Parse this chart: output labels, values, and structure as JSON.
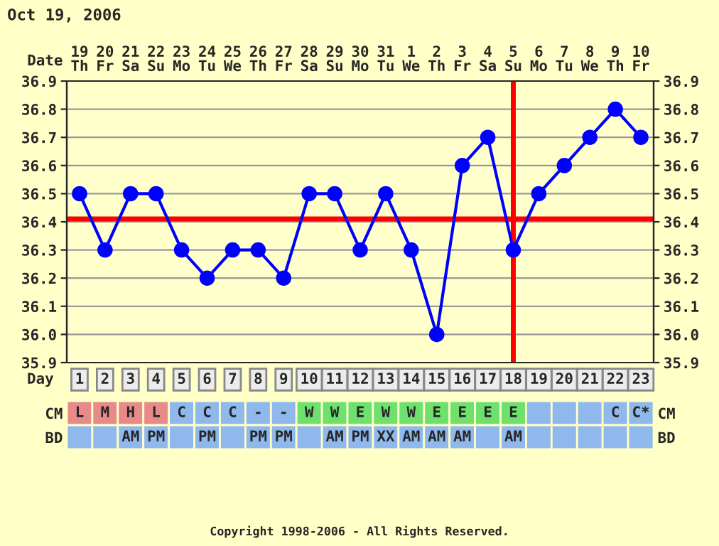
{
  "chart_data": [
    {
      "type": "heatmap",
      "title": "Oct 19, 2006",
      "categories": [
        null,
        null,
        null,
        null,
        null,
        null,
        null,
        null,
        null,
        null,
        null,
        null,
        null,
        null,
        null,
        null,
        null,
        null,
        null,
        null,
        null,
        null,
        null
      ],
      "y_categories": [
        "Date"
      ],
      "cells": [
        [
          null,
          null,
          null,
          null,
          null,
          null,
          null,
          null,
          null,
          null,
          null,
          null,
          null,
          null,
          null,
          null,
          null,
          null,
          null,
          null,
          null,
          null,
          null
        ]
      ],
      "cell_labels": [
        [
          "19\nTh",
          "20\nFr",
          "21\nSa",
          "22\nSu",
          "23\nMo",
          "24\nTu",
          "25\nWe",
          "26\nTh",
          "27\nFr",
          "28\nSa",
          "29\nSu",
          "30\nMo",
          "31\nTu",
          "1\nWe",
          "2\nTh",
          "3\nFr",
          "4\nSa",
          "5\nSu",
          "6\nMo",
          "7\nTu",
          "8\nWe",
          "9\nTh",
          "10\nFr"
        ]
      ]
    },
    {
      "type": "line",
      "xlabel": "Day",
      "categories": [
        "1",
        "2",
        "3",
        "4",
        "5",
        "6",
        "7",
        "8",
        "9",
        "10",
        "11",
        "12",
        "13",
        "14",
        "15",
        "16",
        "17",
        "18",
        "19",
        "20",
        "21",
        "22",
        "23"
      ],
      "series": [
        {
          "color": "#0000ff",
          "values": [
            36.5,
            36.3,
            36.5,
            36.5,
            36.3,
            36.2,
            36.3,
            36.3,
            36.2,
            36.5,
            36.5,
            36.3,
            36.5,
            36.3,
            36.0,
            36.6,
            36.7,
            36.3,
            36.5,
            36.6,
            36.7,
            36.8,
            36.7
          ]
        }
      ],
      "ylim": [
        35.9,
        36.9
      ],
      "yticks": [
        {
          "value": 35.9,
          "label": "35.9"
        },
        {
          "value": 36.0,
          "label": "36.0"
        },
        {
          "value": 36.1,
          "label": "36.1"
        },
        {
          "value": 36.2,
          "label": "36.2"
        },
        {
          "value": 36.3,
          "label": "36.3"
        },
        {
          "value": 36.4,
          "label": "36.4"
        },
        {
          "value": 36.5,
          "label": "36.5"
        },
        {
          "value": 36.6,
          "label": "36.6"
        },
        {
          "value": 36.7,
          "label": "36.7"
        },
        {
          "value": 36.8,
          "label": "36.8"
        },
        {
          "value": 36.9,
          "label": "36.9"
        }
      ],
      "y2lim": [
        35.9,
        36.9
      ],
      "y2ticks": [
        {
          "value": 35.9,
          "label": "35.9"
        },
        {
          "value": 36.0,
          "label": "36.0"
        },
        {
          "value": 36.1,
          "label": "36.1"
        },
        {
          "value": 36.2,
          "label": "36.2"
        },
        {
          "value": 36.3,
          "label": "36.3"
        },
        {
          "value": 36.4,
          "label": "36.4"
        },
        {
          "value": 36.5,
          "label": "36.5"
        },
        {
          "value": 36.6,
          "label": "36.6"
        },
        {
          "value": 36.7,
          "label": "36.7"
        },
        {
          "value": 36.8,
          "label": "36.8"
        },
        {
          "value": 36.9,
          "label": "36.9"
        }
      ],
      "ref_lines": [
        {
          "axis": "y",
          "value": 36.41,
          "color": "#ff0000"
        },
        {
          "axis": "x",
          "value": "18",
          "color": "#ff0000"
        }
      ],
      "grid": true,
      "marker": "circle",
      "line_style": "solid"
    },
    {
      "type": "heatmap",
      "categories": [
        null,
        null,
        null,
        null,
        null,
        null,
        null,
        null,
        null,
        null,
        null,
        null,
        null,
        null,
        null,
        null,
        null,
        null,
        null,
        null,
        null,
        null,
        null
      ],
      "y_categories": [
        "CM",
        "BD"
      ],
      "y2_categories": [
        "CM",
        "BD"
      ],
      "cells": [
        [
          null,
          null,
          null,
          null,
          null,
          null,
          null,
          null,
          null,
          null,
          null,
          null,
          null,
          null,
          null,
          null,
          null,
          null,
          null,
          null,
          null,
          null,
          null
        ],
        [
          null,
          null,
          null,
          null,
          null,
          null,
          null,
          null,
          null,
          null,
          null,
          null,
          null,
          null,
          null,
          null,
          null,
          null,
          null,
          null,
          null,
          null,
          null
        ]
      ],
      "cell_labels": [
        [
          "L",
          "M",
          "H",
          "L",
          "C",
          "C",
          "C",
          "-",
          "-",
          "W",
          "W",
          "E",
          "W",
          "W",
          "E",
          "E",
          "E",
          "E",
          null,
          null,
          null,
          "C",
          "C*"
        ],
        [
          null,
          null,
          "AM",
          "PM",
          null,
          "PM",
          null,
          "PM",
          "PM",
          null,
          "AM",
          "PM",
          "XX",
          "AM",
          "AM",
          "AM",
          null,
          "AM",
          null,
          null,
          null,
          null,
          null
        ]
      ],
      "colors": [
        [
          "#e88a8a",
          "#e88a8a",
          "#e88a8a",
          "#e88a8a",
          "#8fb8ec",
          "#8fb8ec",
          "#8fb8ec",
          "#8fb8ec",
          "#8fb8ec",
          "#6ee06e",
          "#6ee06e",
          "#6ee06e",
          "#6ee06e",
          "#6ee06e",
          "#6ee06e",
          "#6ee06e",
          "#6ee06e",
          "#6ee06e",
          "#8fb8ec",
          "#8fb8ec",
          "#8fb8ec",
          "#8fb8ec",
          "#8fb8ec"
        ],
        [
          "#8fb8ec",
          "#8fb8ec",
          "#8fb8ec",
          "#8fb8ec",
          "#8fb8ec",
          "#8fb8ec",
          "#8fb8ec",
          "#8fb8ec",
          "#8fb8ec",
          "#8fb8ec",
          "#8fb8ec",
          "#8fb8ec",
          "#8fb8ec",
          "#8fb8ec",
          "#8fb8ec",
          "#8fb8ec",
          "#8fb8ec",
          "#8fb8ec",
          "#8fb8ec",
          "#8fb8ec",
          "#8fb8ec",
          "#8fb8ec",
          "#8fb8ec"
        ]
      ],
      "annotations": [
        "Copyright 1998-2006 - All Rights Reserved."
      ]
    }
  ]
}
